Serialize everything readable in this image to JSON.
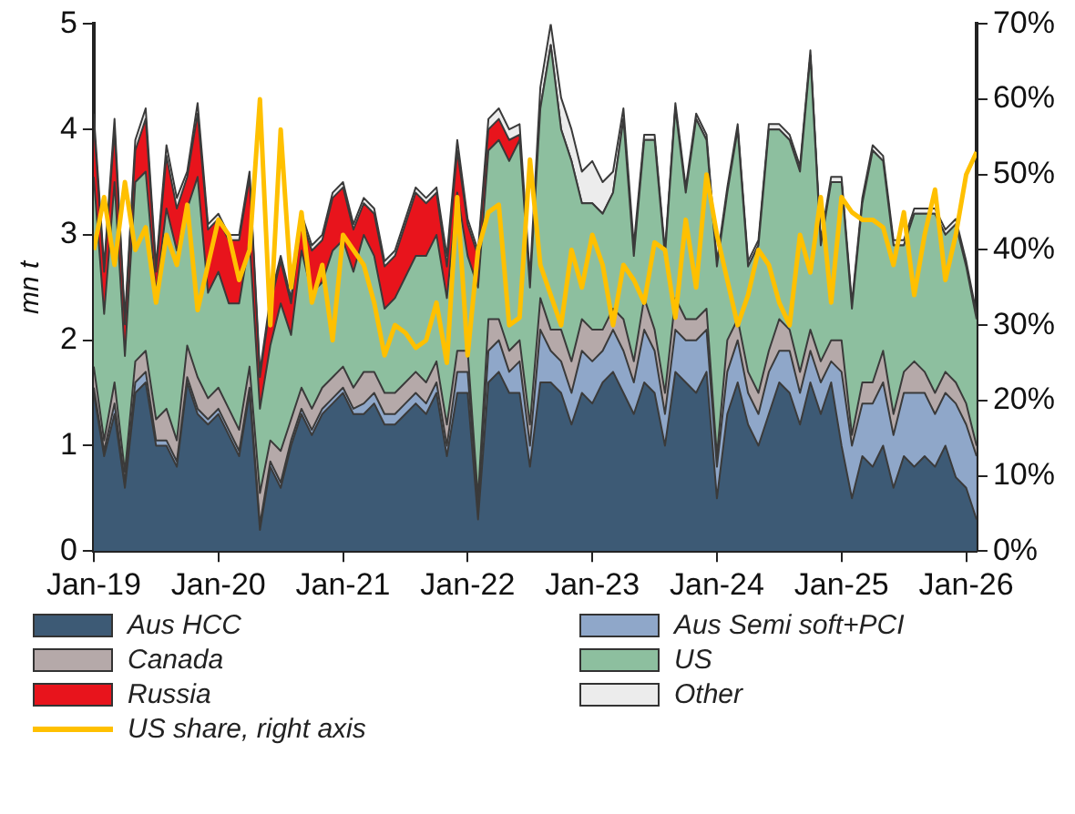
{
  "chart_data": {
    "type": "area",
    "stacked": true,
    "ylabel": "mn t",
    "x": [
      "2019-01",
      "2019-02",
      "2019-03",
      "2019-04",
      "2019-05",
      "2019-06",
      "2019-07",
      "2019-08",
      "2019-09",
      "2019-10",
      "2019-11",
      "2019-12",
      "2020-01",
      "2020-02",
      "2020-03",
      "2020-04",
      "2020-05",
      "2020-06",
      "2020-07",
      "2020-08",
      "2020-09",
      "2020-10",
      "2020-11",
      "2020-12",
      "2021-01",
      "2021-02",
      "2021-03",
      "2021-04",
      "2021-05",
      "2021-06",
      "2021-07",
      "2021-08",
      "2021-09",
      "2021-10",
      "2021-11",
      "2021-12",
      "2022-01",
      "2022-02",
      "2022-03",
      "2022-04",
      "2022-05",
      "2022-06",
      "2022-07",
      "2022-08",
      "2022-09",
      "2022-10",
      "2022-11",
      "2022-12",
      "2023-01",
      "2023-02",
      "2023-03",
      "2023-04",
      "2023-05",
      "2023-06",
      "2023-07",
      "2023-08",
      "2023-09",
      "2023-10",
      "2023-11",
      "2023-12",
      "2024-01",
      "2024-02",
      "2024-03",
      "2024-04",
      "2024-05",
      "2024-06",
      "2024-07",
      "2024-08",
      "2024-09",
      "2024-10",
      "2024-11",
      "2024-12",
      "2025-01",
      "2025-02",
      "2025-03",
      "2025-04",
      "2025-05",
      "2025-06",
      "2025-07",
      "2025-08",
      "2025-09",
      "2025-10",
      "2025-11",
      "2025-12",
      "2026-01",
      "2026-02"
    ],
    "xlim": [
      "2019-01",
      "2026-02"
    ],
    "xticks": [
      {
        "value": "2019-01",
        "label": "Jan-19"
      },
      {
        "value": "2020-01",
        "label": "Jan-20"
      },
      {
        "value": "2021-01",
        "label": "Jan-21"
      },
      {
        "value": "2022-01",
        "label": "Jan-22"
      },
      {
        "value": "2023-01",
        "label": "Jan-23"
      },
      {
        "value": "2024-01",
        "label": "Jan-24"
      },
      {
        "value": "2025-01",
        "label": "Jan-25"
      },
      {
        "value": "2026-01",
        "label": "Jan-26"
      }
    ],
    "ylim": [
      0,
      5
    ],
    "yticks": [
      0,
      1,
      2,
      3,
      4,
      5
    ],
    "y2lim": [
      0,
      70
    ],
    "y2ticks": [
      {
        "value": 0,
        "label": "0%"
      },
      {
        "value": 10,
        "label": "10%"
      },
      {
        "value": 20,
        "label": "20%"
      },
      {
        "value": 30,
        "label": "30%"
      },
      {
        "value": 40,
        "label": "40%"
      },
      {
        "value": 50,
        "label": "50%"
      },
      {
        "value": 60,
        "label": "60%"
      },
      {
        "value": 70,
        "label": "70%"
      }
    ],
    "grid": false,
    "legend": "bottom",
    "series": [
      {
        "name": "Aus HCC",
        "color": "#3d5a75",
        "values": [
          1.5,
          0.9,
          1.3,
          0.6,
          1.5,
          1.6,
          1.0,
          1.0,
          0.8,
          1.6,
          1.3,
          1.2,
          1.3,
          1.1,
          0.9,
          1.5,
          0.2,
          0.8,
          0.6,
          1.0,
          1.3,
          1.1,
          1.3,
          1.4,
          1.5,
          1.3,
          1.3,
          1.4,
          1.2,
          1.2,
          1.3,
          1.4,
          1.3,
          1.5,
          0.9,
          1.5,
          1.5,
          0.3,
          1.6,
          1.7,
          1.5,
          1.5,
          0.8,
          1.6,
          1.6,
          1.5,
          1.2,
          1.5,
          1.4,
          1.6,
          1.7,
          1.5,
          1.3,
          1.6,
          1.5,
          1.0,
          1.7,
          1.6,
          1.5,
          1.7,
          0.5,
          1.3,
          1.6,
          1.2,
          1.0,
          1.3,
          1.6,
          1.5,
          1.2,
          1.6,
          1.3,
          1.6,
          1.0,
          0.5,
          0.9,
          0.8,
          1.0,
          0.6,
          0.9,
          0.8,
          0.9,
          0.8,
          1.0,
          0.7,
          0.6,
          0.3
        ]
      },
      {
        "name": "Aus Semi soft+PCI",
        "color": "#8fa7c9",
        "values": [
          0.05,
          0.05,
          0.1,
          0.05,
          0.1,
          0.1,
          0.05,
          0.05,
          0.05,
          0.05,
          0.05,
          0.05,
          0.05,
          0.05,
          0.05,
          0.05,
          0.05,
          0.05,
          0.05,
          0.05,
          0.05,
          0.05,
          0.05,
          0.05,
          0.05,
          0.05,
          0.1,
          0.1,
          0.1,
          0.1,
          0.1,
          0.1,
          0.1,
          0.1,
          0.1,
          0.2,
          0.2,
          0.1,
          0.3,
          0.3,
          0.2,
          0.3,
          0.2,
          0.5,
          0.3,
          0.3,
          0.3,
          0.4,
          0.4,
          0.3,
          0.4,
          0.4,
          0.3,
          0.5,
          0.4,
          0.3,
          0.4,
          0.4,
          0.5,
          0.4,
          0.3,
          0.4,
          0.4,
          0.3,
          0.3,
          0.4,
          0.3,
          0.4,
          0.3,
          0.3,
          0.3,
          0.2,
          0.7,
          0.5,
          0.5,
          0.6,
          0.6,
          0.5,
          0.6,
          0.7,
          0.6,
          0.5,
          0.5,
          0.7,
          0.6,
          0.6
        ]
      },
      {
        "name": "Canada",
        "color": "#b5a9a9",
        "values": [
          0.2,
          0.1,
          0.2,
          0.1,
          0.2,
          0.2,
          0.2,
          0.3,
          0.2,
          0.3,
          0.3,
          0.2,
          0.2,
          0.2,
          0.2,
          0.2,
          0.3,
          0.2,
          0.3,
          0.2,
          0.2,
          0.2,
          0.2,
          0.2,
          0.2,
          0.2,
          0.3,
          0.2,
          0.2,
          0.2,
          0.2,
          0.2,
          0.2,
          0.2,
          0.2,
          0.2,
          0.2,
          0.1,
          0.3,
          0.2,
          0.2,
          0.2,
          0.2,
          0.3,
          0.2,
          0.3,
          0.3,
          0.3,
          0.3,
          0.2,
          0.2,
          0.3,
          0.2,
          0.3,
          0.2,
          0.2,
          0.3,
          0.2,
          0.2,
          0.2,
          0.1,
          0.3,
          0.2,
          0.2,
          0.2,
          0.2,
          0.3,
          0.2,
          0.2,
          0.2,
          0.2,
          0.2,
          0.3,
          0.1,
          0.2,
          0.2,
          0.3,
          0.2,
          0.2,
          0.3,
          0.2,
          0.2,
          0.2,
          0.2,
          0.2,
          0.1
        ]
      },
      {
        "name": "US",
        "color": "#8dbf9f",
        "values": [
          1.8,
          1.2,
          1.9,
          1.1,
          1.7,
          1.7,
          1.2,
          1.9,
          1.8,
          1.3,
          1.9,
          1.0,
          1.1,
          1.0,
          1.2,
          1.2,
          0.8,
          0.9,
          1.4,
          0.8,
          1.3,
          1.1,
          1.0,
          1.2,
          1.2,
          1.1,
          1.3,
          1.1,
          0.8,
          0.9,
          1.0,
          1.1,
          1.2,
          1.2,
          1.2,
          1.5,
          0.9,
          2.0,
          1.6,
          1.7,
          1.8,
          1.9,
          1.3,
          1.8,
          2.7,
          1.9,
          1.9,
          1.1,
          1.2,
          1.1,
          1.1,
          1.9,
          1.0,
          1.5,
          1.8,
          1.3,
          1.8,
          1.2,
          1.9,
          1.6,
          1.8,
          1.4,
          1.8,
          1.0,
          1.4,
          2.1,
          1.8,
          1.8,
          1.9,
          2.6,
          1.1,
          1.5,
          1.5,
          1.2,
          1.7,
          2.2,
          1.8,
          1.6,
          1.2,
          1.4,
          1.5,
          1.7,
          1.3,
          1.5,
          1.3,
          1.2
        ]
      },
      {
        "name": "Russia",
        "color": "#e8141c",
        "values": [
          0.5,
          0.4,
          0.5,
          0.3,
          0.3,
          0.5,
          0.2,
          0.5,
          0.4,
          0.3,
          0.6,
          0.6,
          0.5,
          0.6,
          0.6,
          0.6,
          0.3,
          0.4,
          0.4,
          0.3,
          0.3,
          0.4,
          0.4,
          0.5,
          0.5,
          0.4,
          0.3,
          0.4,
          0.4,
          0.4,
          0.5,
          0.6,
          0.5,
          0.4,
          0.3,
          0.4,
          0.3,
          0.3,
          0.2,
          0.2,
          0.2,
          0.05,
          0,
          0,
          0,
          0,
          0,
          0,
          0,
          0,
          0,
          0,
          0,
          0,
          0,
          0,
          0,
          0,
          0,
          0,
          0,
          0,
          0,
          0,
          0,
          0,
          0,
          0,
          0,
          0,
          0,
          0,
          0,
          0,
          0,
          0,
          0,
          0,
          0,
          0,
          0,
          0,
          0,
          0,
          0,
          0
        ]
      },
      {
        "name": "Other",
        "color": "#ececec",
        "values": [
          0.1,
          0.05,
          0.1,
          0.05,
          0.1,
          0.1,
          0.05,
          0.1,
          0.1,
          0.05,
          0.1,
          0.05,
          0.05,
          0.05,
          0.05,
          0.05,
          0.05,
          0.05,
          0.05,
          0.05,
          0.05,
          0.05,
          0.05,
          0.05,
          0.05,
          0.05,
          0.05,
          0.05,
          0.05,
          0.05,
          0.05,
          0.05,
          0.05,
          0.05,
          0.1,
          0.1,
          0.05,
          0.05,
          0.1,
          0.1,
          0.1,
          0.1,
          0.1,
          0.2,
          0.2,
          0.3,
          0.3,
          0.3,
          0.4,
          0.3,
          0.2,
          0.1,
          0.1,
          0.05,
          0.05,
          0.05,
          0.05,
          0.05,
          0.05,
          0.05,
          0.05,
          0.05,
          0.05,
          0.05,
          0.05,
          0.05,
          0.05,
          0.05,
          0.05,
          0.05,
          0.05,
          0.05,
          0.05,
          0.05,
          0.05,
          0.05,
          0.05,
          0.05,
          0.05,
          0.05,
          0.05,
          0.05,
          0.05,
          0.05,
          0.05,
          0.05
        ]
      },
      {
        "name": "US share, right axis",
        "type": "line",
        "axis": "y2",
        "color": "#ffc000",
        "values": [
          40,
          47,
          38,
          49,
          40,
          43,
          33,
          42,
          38,
          46,
          32,
          38,
          44,
          42,
          36,
          40,
          60,
          30,
          56,
          35,
          45,
          33,
          38,
          28,
          42,
          40,
          38,
          33,
          26,
          30,
          29,
          27,
          28,
          33,
          25,
          47,
          26,
          40,
          45,
          46,
          30,
          31,
          52,
          38,
          34,
          30,
          40,
          35,
          42,
          38,
          30,
          38,
          36,
          33,
          41,
          40,
          31,
          44,
          35,
          50,
          42,
          36,
          30,
          34,
          40,
          38,
          33,
          30,
          42,
          37,
          47,
          33,
          47,
          45,
          44,
          44,
          43,
          38,
          45,
          34,
          42,
          48,
          36,
          42,
          50,
          53
        ]
      }
    ]
  }
}
